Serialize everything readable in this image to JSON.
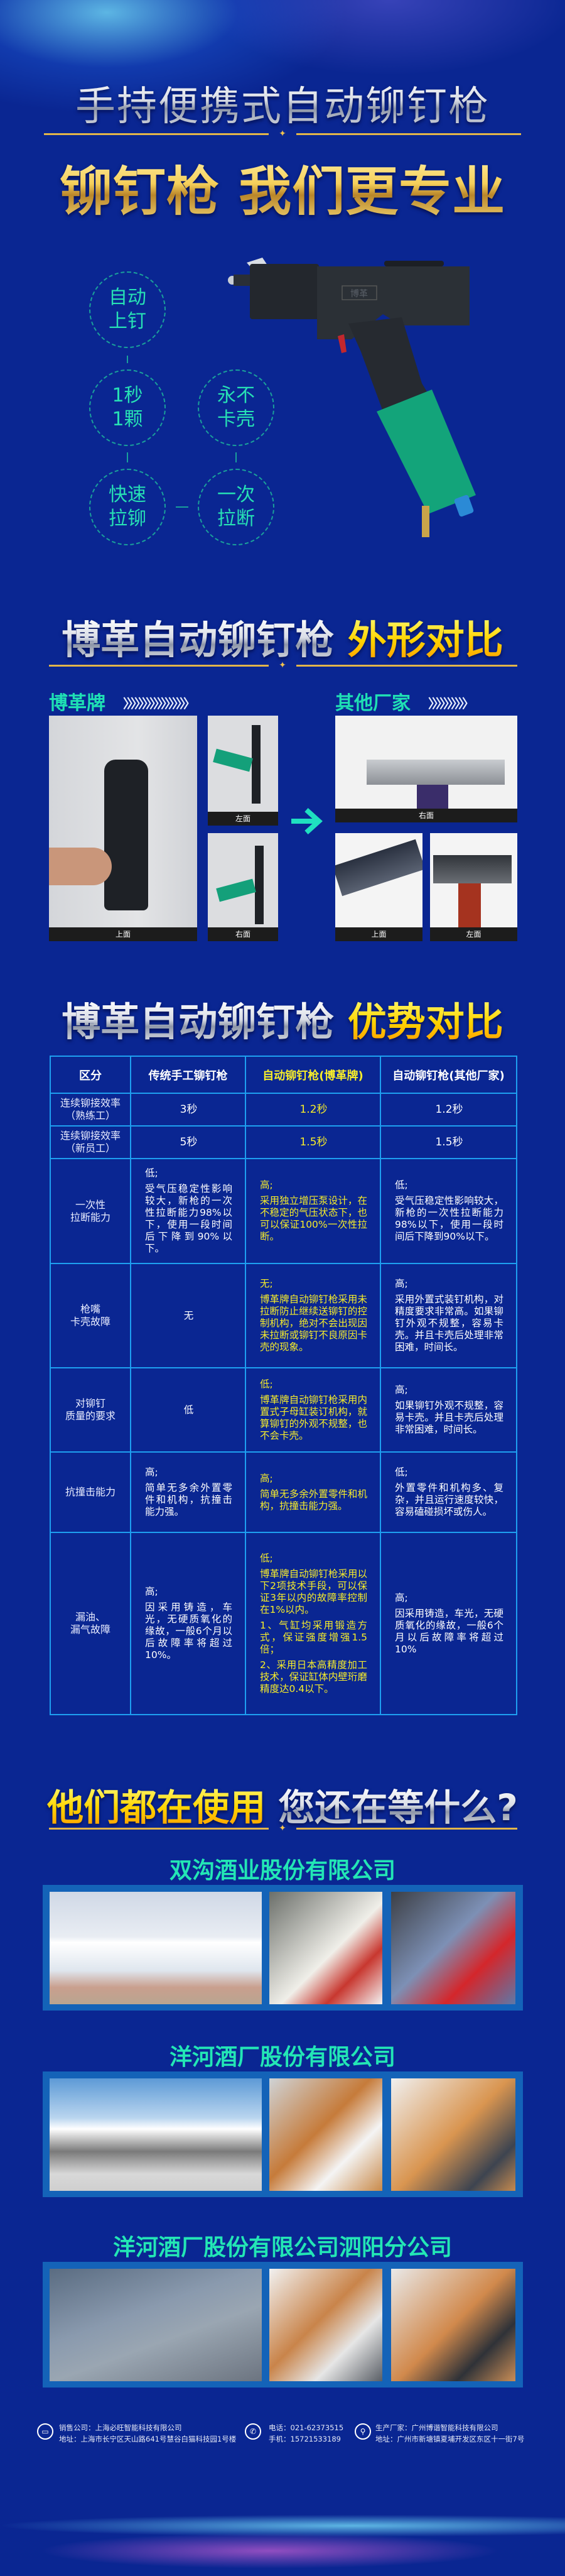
{
  "header": {
    "title": "手持便携式自动铆钉枪",
    "slogan": "铆钉枪 我们更专业"
  },
  "features": [
    {
      "line1": "自动",
      "line2": "上钉"
    },
    {
      "line1": "1秒",
      "line2": "1颗"
    },
    {
      "line1": "永不",
      "line2": "卡壳"
    },
    {
      "line1": "快速",
      "line2": "拉铆"
    },
    {
      "line1": "一次",
      "line2": "拉断"
    }
  ],
  "product": {
    "brand_mark": "博革"
  },
  "appearance": {
    "title_main": "博革自动铆钉枪",
    "title_accent": "外形对比",
    "ours": {
      "label": "博革牌",
      "chevrons": "〉〉〉〉〉〉〉〉〉〉〉〉〉〉〉〉〉",
      "captions": [
        "上面",
        "左面",
        "右面"
      ]
    },
    "others": {
      "label": "其他厂家",
      "chevrons": "〉〉〉〉〉〉〉〉〉〉",
      "captions": [
        "右面",
        "上面",
        "左面"
      ]
    }
  },
  "advantages": {
    "title_main": "博革自动铆钉枪",
    "title_accent": "优势对比",
    "headers": [
      "区分",
      "传统手工铆钉枪",
      "自动铆钉枪(博革牌)",
      "自动铆钉枪(其他厂家)"
    ],
    "rows": [
      {
        "label": "连续铆接效率\n（熟练工）",
        "cells": [
          {
            "paras": [
              "3秒"
            ]
          },
          {
            "paras": [
              "1.2秒"
            ]
          },
          {
            "paras": [
              "1.2秒"
            ]
          }
        ],
        "centered": true
      },
      {
        "label": "连续铆接效率\n（新员工）",
        "cells": [
          {
            "paras": [
              "5秒"
            ]
          },
          {
            "paras": [
              "1.5秒"
            ]
          },
          {
            "paras": [
              "1.5秒"
            ]
          }
        ],
        "centered": true
      },
      {
        "label": "一次性\n拉断能力",
        "cells": [
          {
            "paras": [
              "低;",
              "受气压稳定性影响较大，新枪的一次性拉断能力98%以下，使用一段时间后下降到90%以下。"
            ]
          },
          {
            "paras": [
              "高;",
              "采用独立增压泵设计，在不稳定的气压状态下，也可以保证100%一次性拉断。"
            ]
          },
          {
            "paras": [
              "低;",
              "受气压稳定性影响较大，新枪的一次性拉断能力98%以下，使用一段时间后下降到90%以下。"
            ]
          }
        ]
      },
      {
        "label": "枪嘴\n卡壳故障",
        "cells": [
          {
            "paras": [
              "无"
            ],
            "center": true
          },
          {
            "paras": [
              "无;",
              "博革牌自动铆钉枪采用未拉断防止继续送铆钉的控制机构，绝对不会出现因未拉断或铆钉不良原因卡壳的现象。"
            ]
          },
          {
            "paras": [
              "高;",
              "采用外置式装钉机构，对精度要求非常高。如果铆钉外观不规整，容易卡壳。并且卡壳后处理非常困难，时间长。"
            ]
          }
        ]
      },
      {
        "label": "对铆钉\n质量的要求",
        "cells": [
          {
            "paras": [
              "低"
            ],
            "center": true
          },
          {
            "paras": [
              "低;",
              "博革牌自动铆钉枪采用内置式子母缸装订机构，就算铆钉的外观不规整，也不会卡壳。"
            ]
          },
          {
            "paras": [
              "高;",
              "如果铆钉外观不规整，容易卡壳。并且卡壳后处理非常困难，时间长。"
            ]
          }
        ]
      },
      {
        "label": "抗撞击能力",
        "cells": [
          {
            "paras": [
              "高;",
              "简单无多余外置零件和机构，抗撞击能力强。"
            ]
          },
          {
            "paras": [
              "高;",
              "简单无多余外置零件和机构，抗撞击能力强。"
            ]
          },
          {
            "paras": [
              "低;",
              "外置零件和机构多、复杂，并且运行速度较快，容易磕碰损坏或伤人。"
            ]
          }
        ]
      },
      {
        "label": "漏油、\n漏气故障",
        "cells": [
          {
            "paras": [
              "高;",
              "因采用铸造，车光，无硬质氧化的缘故，一般6个月以后故障率将超过10%。"
            ]
          },
          {
            "paras": [
              "低;",
              "博革牌自动铆钉枪采用以下2项技术手段，可以保证3年以内的故障率控制在1%以内。",
              "1、气缸均采用锻造方式，保证强度增强1.5倍；",
              "2、采用日本高精度加工技术，保证缸体内壁珩磨精度达0.4以下。"
            ]
          },
          {
            "paras": [
              "高;",
              "因采用铸造，车光，无硬质氧化的缘故，一般6个月以后故障率将超过10%"
            ]
          }
        ]
      }
    ]
  },
  "customers": {
    "title_accent": "他们都在使用",
    "title_main": "您还在等什么?",
    "companies": [
      {
        "name": "双沟酒业股份有限公司"
      },
      {
        "name": "洋河酒厂股份有限公司"
      },
      {
        "name": "洋河酒厂股份有限公司泗阳分公司"
      }
    ]
  },
  "footer": {
    "sales": {
      "icon": "fax-icon",
      "line1": "销售公司：上海必旺智能科技有限公司",
      "line2": "地址：上海市长宁区天山路641号慧谷白猫科技园1号楼"
    },
    "phone": {
      "icon": "phone-icon",
      "line1": "电话：021-62373515",
      "line2": "手机：15721533189"
    },
    "maker": {
      "icon": "location-pin-icon",
      "line1": "生产厂家：广州博谐智能科技有限公司",
      "line2": "地址：广州市新塘镇夏埔开发区东区十一街7号"
    }
  },
  "colors": {
    "background": "#0a2692",
    "accent_teal": "#23e6b5",
    "gold": "#e2b54a",
    "table_border": "#1e9ff0",
    "highlight_yellow": "#f6ec2a",
    "frame_blue": "#1463b8"
  }
}
